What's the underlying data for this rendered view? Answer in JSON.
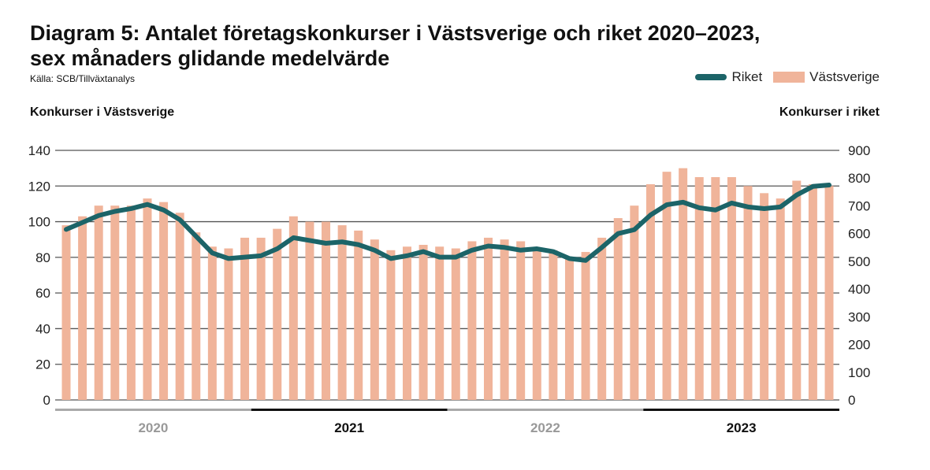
{
  "title": "Diagram 5: Antalet företagskonkurser i Västsverige och riket 2020–2023, sex månaders glidande medelvärde",
  "title_line1": "Diagram 5: Antalet företagskonkurser i Västsverige och riket 2020–2023,",
  "title_line2": "sex månaders glidande medelvärde",
  "source": "Källa: SCB/Tillväxtanalys",
  "chart_data": {
    "type": "bar+line",
    "title": "Diagram 5: Antalet företagskonkurser i Västsverige och riket 2020–2023, sex månaders glidande medelvärde",
    "ylabel_left": "Konkurser i Västsverige",
    "ylabel_right": "Konkurser i riket",
    "ylim_left": [
      0,
      140
    ],
    "ylim_right": [
      0,
      900
    ],
    "yticks_left": [
      "0",
      "20",
      "40",
      "60",
      "80",
      "100",
      "120",
      "140"
    ],
    "yticks_right": [
      "0",
      "100",
      "200",
      "300",
      "400",
      "500",
      "600",
      "700",
      "800",
      "900"
    ],
    "years": [
      "2020",
      "2021",
      "2022",
      "2023"
    ],
    "legend": [
      "Riket",
      "Västsverige"
    ],
    "legend_position": "top-right",
    "grid": true,
    "colors": {
      "Riket": "#1c6468",
      "Västsverige": "#f0b49a"
    },
    "series": [
      {
        "name": "Västsverige",
        "type": "bar",
        "axis": "left",
        "values": [
          98,
          103,
          109,
          109,
          109,
          113,
          111,
          105,
          94,
          86,
          85,
          91,
          91,
          96,
          103,
          100,
          100,
          98,
          95,
          90,
          84,
          86,
          87,
          86,
          85,
          89,
          91,
          90,
          89,
          85,
          84,
          80,
          83,
          91,
          102,
          109,
          121,
          128,
          130,
          125,
          125,
          125,
          120,
          116,
          113,
          123,
          121,
          120
        ]
      },
      {
        "name": "Riket",
        "type": "line",
        "axis": "right",
        "values": [
          615,
          640,
          665,
          680,
          690,
          705,
          685,
          650,
          590,
          530,
          510,
          515,
          520,
          545,
          585,
          575,
          565,
          570,
          560,
          540,
          510,
          520,
          535,
          515,
          515,
          540,
          555,
          550,
          540,
          545,
          535,
          510,
          503,
          550,
          600,
          614,
          667,
          704,
          713,
          693,
          685,
          710,
          696,
          690,
          696,
          739,
          770,
          775
        ]
      }
    ]
  }
}
